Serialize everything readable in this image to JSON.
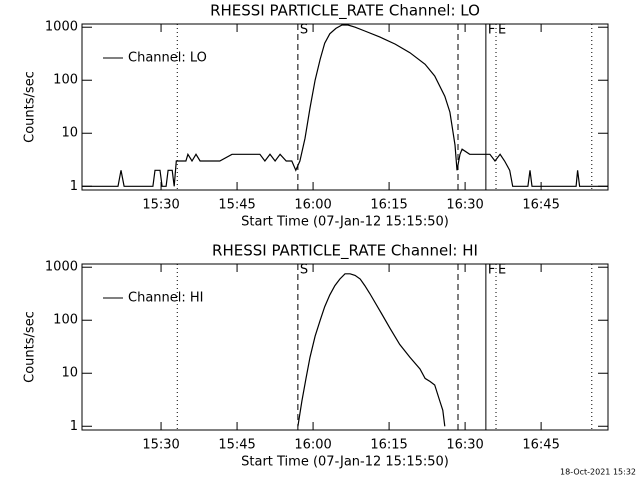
{
  "chart_data": [
    {
      "type": "line",
      "title": "RHESSI PARTICLE_RATE Channel: LO",
      "x_label": "Start Time (07-Jan-12 15:15:50)",
      "y_label": "Counts/sec",
      "log_y": true,
      "legend": "upper left",
      "xlim": [
        914.4,
        1018.2
      ],
      "ylim": [
        0.85,
        1150
      ],
      "xticks": [
        {
          "value": 930,
          "label": "15:30"
        },
        {
          "value": 945,
          "label": "15:45"
        },
        {
          "value": 960,
          "label": "16:00"
        },
        {
          "value": 975,
          "label": "16:15"
        },
        {
          "value": 990,
          "label": "16:30"
        },
        {
          "value": 1005,
          "label": "16:45"
        }
      ],
      "yticks": [
        1,
        10,
        100,
        1000
      ],
      "markers": [
        {
          "x": 933.2,
          "style": "dotted"
        },
        {
          "x": 957.0,
          "style": "dashed",
          "label": "S"
        },
        {
          "x": 988.6,
          "style": "dashed"
        },
        {
          "x": 994.1,
          "style": "solid",
          "label": "F"
        },
        {
          "x": 996.1,
          "style": "dotted",
          "label": "E"
        },
        {
          "x": 1015.0,
          "style": "dotted"
        }
      ],
      "series": [
        {
          "name": "Channel: LO",
          "color": "#000000",
          "x": [
            914.4,
            921.5,
            922.1,
            922.7,
            928.4,
            928.8,
            929.8,
            930.2,
            931.0,
            931.4,
            932.2,
            932.6,
            933.0,
            933.7,
            934.9,
            935.3,
            936.1,
            936.9,
            937.7,
            938.7,
            939.7,
            941.6,
            944.0,
            949.5,
            950.5,
            951.5,
            952.5,
            953.5,
            954.7,
            955.8,
            956.6,
            957.4,
            958.4,
            959.4,
            960.4,
            961.4,
            962.3,
            963.3,
            964.5,
            965.7,
            966.9,
            968.3,
            970.2,
            973.2,
            976.2,
            979.1,
            982.1,
            984.0,
            986.0,
            987.0,
            988.0,
            988.4,
            989.0,
            989.4,
            990.9,
            992.9,
            994.9,
            995.9,
            996.9,
            997.8,
            998.8,
            999.4,
            1002.4,
            1002.8,
            1003.2,
            1011.9,
            1012.2,
            1012.6,
            1018.2
          ],
          "values": [
            1,
            1,
            2,
            1,
            1,
            2,
            2,
            1,
            1,
            2,
            2,
            1,
            3,
            3,
            3,
            4,
            3,
            4,
            3,
            3,
            3,
            3,
            4,
            4,
            3,
            4,
            3,
            4,
            3,
            3,
            2,
            3,
            8,
            30,
            100,
            250,
            500,
            750,
            950,
            1100,
            1100,
            1000,
            850,
            650,
            480,
            330,
            200,
            120,
            50,
            25,
            6,
            2,
            4,
            5,
            4,
            4,
            4,
            3,
            4,
            3,
            2,
            1,
            1,
            2,
            1,
            1,
            2,
            1,
            1
          ]
        }
      ]
    },
    {
      "type": "line",
      "title": "RHESSI PARTICLE_RATE Channel: HI",
      "x_label": "Start Time (07-Jan-12 15:15:50)",
      "y_label": "Counts/sec",
      "log_y": true,
      "legend": "upper left",
      "xlim": [
        914.4,
        1018.2
      ],
      "ylim": [
        0.85,
        1150
      ],
      "xticks": [
        {
          "value": 930,
          "label": "15:30"
        },
        {
          "value": 945,
          "label": "15:45"
        },
        {
          "value": 960,
          "label": "16:00"
        },
        {
          "value": 975,
          "label": "16:15"
        },
        {
          "value": 990,
          "label": "16:30"
        },
        {
          "value": 1005,
          "label": "16:45"
        }
      ],
      "yticks": [
        1,
        10,
        100,
        1000
      ],
      "markers": [
        {
          "x": 933.2,
          "style": "dotted"
        },
        {
          "x": 957.0,
          "style": "dashed",
          "label": "S"
        },
        {
          "x": 988.6,
          "style": "dashed"
        },
        {
          "x": 994.1,
          "style": "solid",
          "label": "F"
        },
        {
          "x": 996.1,
          "style": "dotted",
          "label": "E"
        },
        {
          "x": 1015.0,
          "style": "dotted"
        }
      ],
      "series": [
        {
          "name": "Channel: HI",
          "color": "#000000",
          "x": [
            957.0,
            957.8,
            958.6,
            959.4,
            960.4,
            961.4,
            962.3,
            963.3,
            964.3,
            965.3,
            966.3,
            967.3,
            968.3,
            969.3,
            970.2,
            971.2,
            973.2,
            975.2,
            977.1,
            979.1,
            981.1,
            982.1,
            983.1,
            984.0,
            985.0,
            985.6,
            986.0
          ],
          "values": [
            1,
            3,
            8,
            20,
            50,
            100,
            180,
            300,
            450,
            600,
            750,
            750,
            700,
            600,
            450,
            320,
            150,
            70,
            35,
            20,
            12,
            8,
            7,
            6,
            3,
            2,
            1
          ]
        }
      ]
    }
  ],
  "footer": "18-Oct-2021 15:32"
}
